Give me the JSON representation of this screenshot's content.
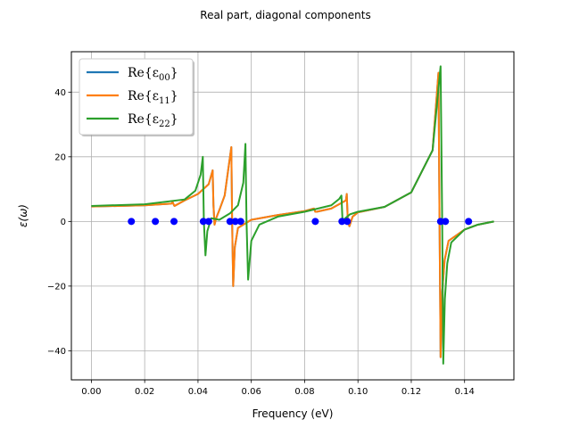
{
  "chart_data": {
    "type": "line",
    "title": "Real part, diagonal components",
    "xlabel": "Frequency (eV)",
    "ylabel": "ε(ω)",
    "xlim": [
      -0.0075,
      0.1585
    ],
    "ylim": [
      -49,
      52.5
    ],
    "xticks": [
      0.0,
      0.02,
      0.04,
      0.06,
      0.08,
      0.1,
      0.12,
      0.14
    ],
    "xtick_labels": [
      "0.00",
      "0.02",
      "0.04",
      "0.06",
      "0.08",
      "0.10",
      "0.12",
      "0.14"
    ],
    "yticks": [
      -40,
      -20,
      0,
      20,
      40
    ],
    "ytick_labels": [
      "−40",
      "−20",
      "0",
      "20",
      "40"
    ],
    "grid": true,
    "legend_position": "top-left",
    "series": [
      {
        "name": "Re{ε₀₀}",
        "legend_base": "Re{ε",
        "legend_sub": "00",
        "color": "#1f77b4",
        "x": [
          0.0,
          0.02,
          0.03,
          0.0305,
          0.031,
          0.0312,
          0.035,
          0.04,
          0.044,
          0.0455,
          0.0458,
          0.0462,
          0.0468,
          0.048,
          0.05,
          0.052,
          0.0525,
          0.0528,
          0.0532,
          0.0538,
          0.055,
          0.058,
          0.06,
          0.07,
          0.08,
          0.0835,
          0.084,
          0.0845,
          0.09,
          0.0955,
          0.0958,
          0.0962,
          0.0968,
          0.098,
          0.1,
          0.11,
          0.12,
          0.128,
          0.1302,
          0.1306,
          0.131,
          0.1316,
          0.1325,
          0.134,
          0.14,
          0.145,
          0.151
        ],
        "y": [
          4.6,
          5.0,
          5.5,
          6.0,
          5.0,
          4.8,
          6.5,
          8.5,
          11.5,
          15.8,
          5.0,
          -1.0,
          1.0,
          3.5,
          8.0,
          20.0,
          23.0,
          0.0,
          -20.0,
          -8.0,
          -2.0,
          -0.5,
          0.5,
          2.0,
          3.2,
          4.0,
          3.0,
          3.0,
          4.0,
          6.5,
          8.5,
          0.0,
          -1.5,
          1.5,
          2.8,
          4.5,
          9.0,
          22.0,
          46.0,
          0.0,
          -42.0,
          -22.0,
          -12.0,
          -6.0,
          -2.5,
          -1.0,
          0.0
        ]
      },
      {
        "name": "Re{ε₁₁}",
        "legend_base": "Re{ε",
        "legend_sub": "11",
        "color": "#ff7f0e",
        "x": [
          0.0,
          0.02,
          0.03,
          0.0305,
          0.031,
          0.0312,
          0.035,
          0.04,
          0.044,
          0.0455,
          0.0458,
          0.0462,
          0.0468,
          0.048,
          0.05,
          0.052,
          0.0525,
          0.0528,
          0.0532,
          0.0538,
          0.055,
          0.058,
          0.06,
          0.07,
          0.08,
          0.0835,
          0.084,
          0.0845,
          0.09,
          0.0955,
          0.0958,
          0.0962,
          0.0968,
          0.098,
          0.1,
          0.11,
          0.12,
          0.128,
          0.1302,
          0.1306,
          0.131,
          0.1316,
          0.1325,
          0.134,
          0.14,
          0.145,
          0.151
        ],
        "y": [
          4.6,
          5.0,
          5.5,
          6.0,
          5.0,
          4.8,
          6.5,
          8.5,
          11.5,
          15.8,
          5.0,
          -1.0,
          1.0,
          3.5,
          8.0,
          20.0,
          23.0,
          0.0,
          -20.0,
          -8.0,
          -2.0,
          -0.5,
          0.5,
          2.0,
          3.2,
          4.0,
          3.0,
          3.0,
          4.0,
          6.5,
          8.5,
          0.0,
          -1.5,
          1.5,
          2.8,
          4.5,
          9.0,
          22.0,
          46.0,
          0.0,
          -42.0,
          -22.0,
          -12.0,
          -6.0,
          -2.5,
          -1.0,
          0.0
        ]
      },
      {
        "name": "Re{ε₂₂}",
        "legend_base": "Re{ε",
        "legend_sub": "22",
        "color": "#2ca02c",
        "x": [
          0.0,
          0.02,
          0.035,
          0.039,
          0.041,
          0.0418,
          0.0422,
          0.0428,
          0.0435,
          0.045,
          0.048,
          0.052,
          0.055,
          0.057,
          0.0578,
          0.0582,
          0.0588,
          0.06,
          0.063,
          0.07,
          0.08,
          0.09,
          0.093,
          0.0938,
          0.0942,
          0.095,
          0.097,
          0.1,
          0.11,
          0.12,
          0.128,
          0.131,
          0.1316,
          0.132,
          0.1326,
          0.1335,
          0.135,
          0.14,
          0.145,
          0.151
        ],
        "y": [
          4.8,
          5.3,
          6.8,
          9.5,
          14.5,
          20.0,
          0.0,
          -10.5,
          -3.0,
          1.0,
          0.5,
          2.5,
          5.0,
          12.0,
          24.0,
          0.0,
          -18.0,
          -6.0,
          -1.0,
          1.5,
          3.0,
          5.0,
          7.0,
          8.0,
          0.5,
          0.8,
          2.2,
          3.0,
          4.5,
          9.0,
          22.0,
          48.0,
          0.0,
          -44.0,
          -24.0,
          -13.0,
          -6.5,
          -2.5,
          -1.0,
          0.0
        ]
      }
    ],
    "markers": {
      "color": "#0000ff",
      "x": [
        0.015,
        0.024,
        0.031,
        0.042,
        0.044,
        0.052,
        0.054,
        0.056,
        0.084,
        0.094,
        0.096,
        0.131,
        0.1328,
        0.1415
      ],
      "y": [
        0,
        0,
        0,
        0,
        0,
        0,
        0,
        0,
        0,
        0,
        0,
        0,
        0,
        0
      ]
    }
  }
}
